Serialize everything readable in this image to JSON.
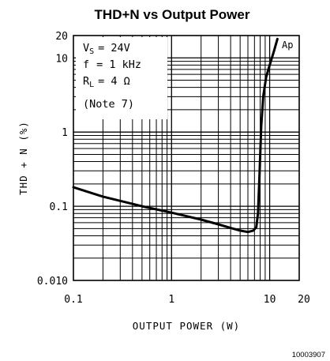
{
  "chart_data": {
    "type": "line",
    "title": "THD+N vs Output Power",
    "xlabel": "OUTPUT POWER (W)",
    "ylabel": "THD + N (%)",
    "x_scale": "log",
    "y_scale": "log",
    "xlim": [
      0.1,
      20
    ],
    "ylim": [
      0.01,
      20
    ],
    "grid": true,
    "x_ticks": [
      {
        "value": 0.1,
        "label": "0.1"
      },
      {
        "value": 1,
        "label": "1"
      },
      {
        "value": 10,
        "label": "10"
      },
      {
        "value": 20,
        "label": "20"
      }
    ],
    "y_ticks": [
      {
        "value": 0.01,
        "label": "0.010"
      },
      {
        "value": 0.1,
        "label": "0.1"
      },
      {
        "value": 1,
        "label": "1"
      },
      {
        "value": 10,
        "label": "10"
      },
      {
        "value": 20,
        "label": "20"
      }
    ],
    "conditions": {
      "vs": {
        "symbol": "V",
        "sub": "S",
        "value": "= 24V"
      },
      "f": {
        "symbol": "f",
        "value": "= 1 kHz"
      },
      "rl": {
        "symbol": "R",
        "sub": "L",
        "value": "= 4 Ω"
      },
      "note": "(Note 7)"
    },
    "corner_mark": "Ap",
    "figure_id": "10003907",
    "series": [
      {
        "x": [
          0.1,
          0.2,
          0.5,
          1,
          2,
          3,
          4,
          5,
          6,
          6.8,
          7.3,
          7.6,
          7.9,
          8.2,
          8.6,
          9.2,
          10,
          11,
          12
        ],
        "y": [
          0.18,
          0.135,
          0.1,
          0.082,
          0.066,
          0.057,
          0.051,
          0.047,
          0.045,
          0.047,
          0.052,
          0.08,
          0.3,
          1.2,
          3,
          5.5,
          8,
          12,
          18
        ]
      }
    ]
  }
}
